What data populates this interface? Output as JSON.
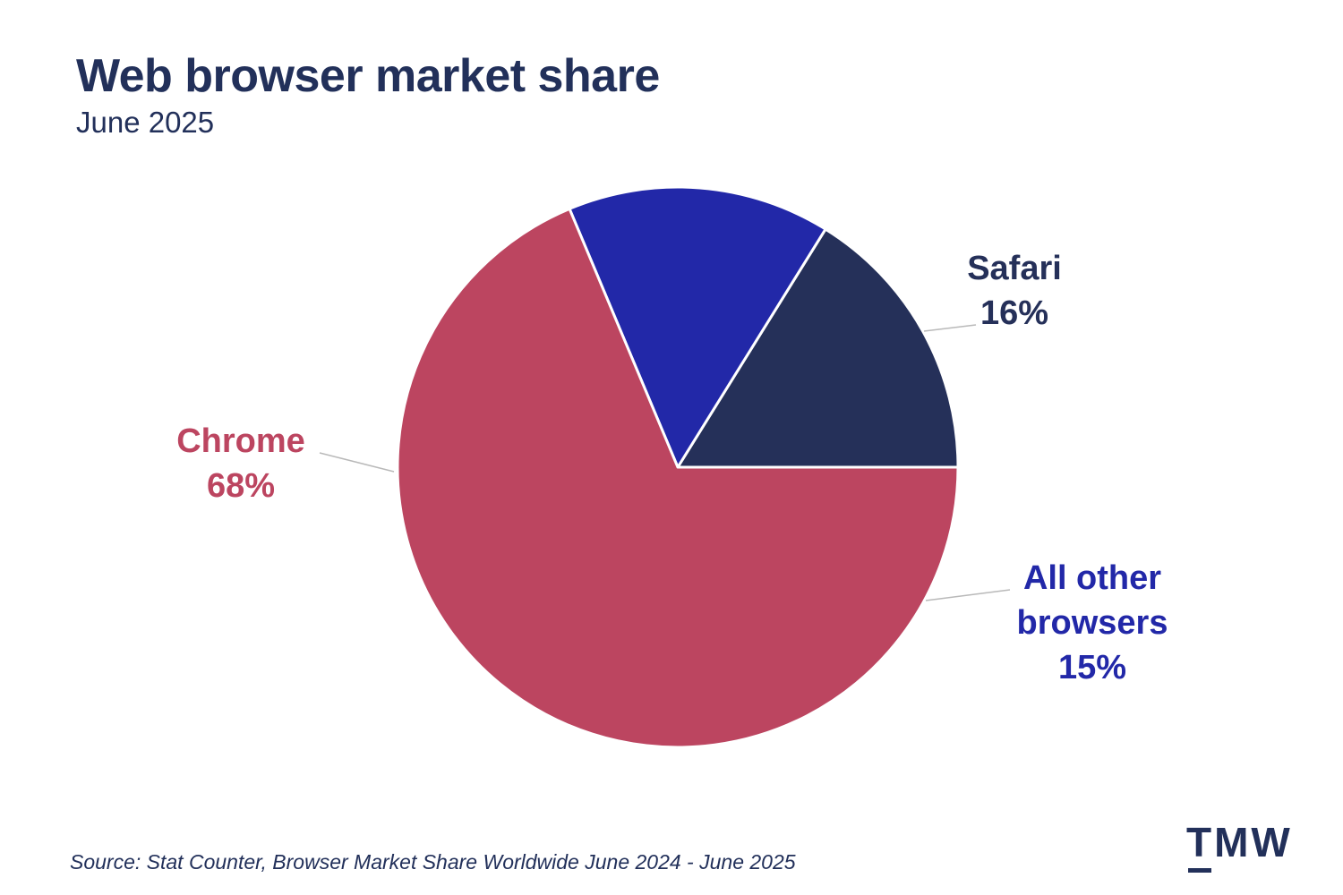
{
  "header": {
    "title": "Web browser market share",
    "subtitle": "June 2025"
  },
  "chart_data": {
    "type": "pie",
    "title": "Web browser market share",
    "subtitle": "June 2025",
    "slices": [
      {
        "name": "Safari",
        "label_lines": [
          "Safari",
          "16%"
        ],
        "value": 16,
        "color": "#253059",
        "label_color": "#253059"
      },
      {
        "name": "All other browsers",
        "label_lines": [
          "All other",
          "browsers",
          "15%"
        ],
        "value": 15,
        "color": "#2228a8",
        "label_color": "#2228a8"
      },
      {
        "name": "Chrome",
        "label_lines": [
          "Chrome",
          "68%"
        ],
        "value": 68,
        "color": "#bc4560",
        "label_color": "#bc4560"
      }
    ],
    "start_angle_deg": 0,
    "direction": "clockwise-from-3-oclock"
  },
  "footer": {
    "source": "Source: Stat Counter, Browser Market Share Worldwide June 2024 - June 2025",
    "logo_text": "TMW"
  }
}
